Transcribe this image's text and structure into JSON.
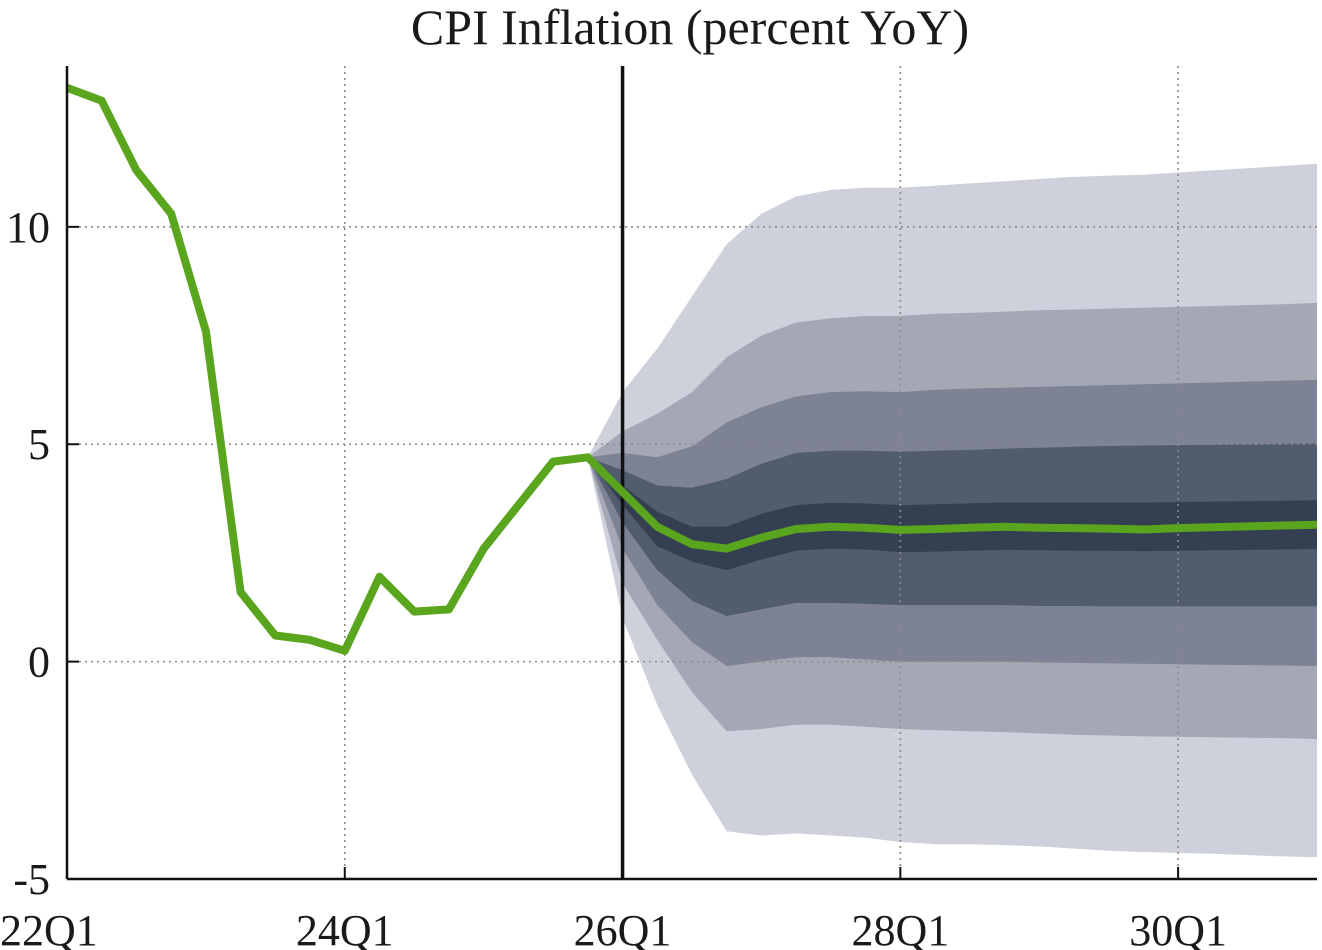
{
  "chart_data": {
    "type": "line",
    "title": "CPI Inflation (percent YoY)",
    "xlabel": "",
    "ylabel": "",
    "grid": true,
    "ylim": [
      -5,
      13.7
    ],
    "xlim": [
      0,
      36
    ],
    "x_ticks": [
      {
        "x": 0,
        "label": "22Q1"
      },
      {
        "x": 8,
        "label": "24Q1"
      },
      {
        "x": 16,
        "label": "26Q1"
      },
      {
        "x": 24,
        "label": "28Q1"
      },
      {
        "x": 32,
        "label": "30Q1"
      }
    ],
    "y_ticks": [
      {
        "y": -5,
        "label": "-5"
      },
      {
        "y": 0,
        "label": "0"
      },
      {
        "y": 5,
        "label": "5"
      },
      {
        "y": 10,
        "label": "10"
      }
    ],
    "forecast_start": 16,
    "series": [
      {
        "name": "CPI inflation",
        "color": "#5aa51e",
        "x": [
          0,
          1,
          2,
          3,
          4,
          5,
          6,
          7,
          8,
          9,
          10,
          11,
          12,
          13,
          14,
          15,
          16,
          17,
          18,
          19,
          20,
          21,
          22,
          23,
          24,
          25,
          26,
          27,
          28,
          29,
          30,
          31,
          32,
          33,
          34,
          35,
          36
        ],
        "values": [
          13.2,
          12.9,
          11.3,
          10.3,
          7.6,
          1.6,
          0.6,
          0.5,
          0.25,
          1.95,
          1.15,
          1.2,
          2.6,
          3.6,
          4.6,
          4.7,
          3.9,
          3.1,
          2.7,
          2.6,
          2.85,
          3.05,
          3.1,
          3.08,
          3.03,
          3.05,
          3.08,
          3.1,
          3.08,
          3.07,
          3.06,
          3.04,
          3.07,
          3.09,
          3.11,
          3.13,
          3.15
        ]
      }
    ],
    "fan_chart": {
      "x": [
        15,
        16,
        17,
        18,
        19,
        20,
        21,
        22,
        23,
        24,
        25,
        26,
        27,
        28,
        29,
        30,
        31,
        32,
        33,
        34,
        35,
        36
      ],
      "bands": [
        {
          "name": "outer band",
          "color": "#ced1dc",
          "lower": [
            4.7,
            1.0,
            -1.0,
            -2.6,
            -3.9,
            -4.0,
            -3.95,
            -4.0,
            -4.05,
            -4.15,
            -4.2,
            -4.2,
            -4.22,
            -4.25,
            -4.3,
            -4.35,
            -4.38,
            -4.4,
            -4.42,
            -4.45,
            -4.48,
            -4.5
          ],
          "upper": [
            4.7,
            6.2,
            7.2,
            8.4,
            9.6,
            10.3,
            10.7,
            10.85,
            10.9,
            10.9,
            10.95,
            11.0,
            11.05,
            11.1,
            11.15,
            11.18,
            11.2,
            11.25,
            11.3,
            11.35,
            11.4,
            11.45
          ]
        },
        {
          "name": "band 2",
          "color": "#a4a8b5",
          "lower": [
            4.7,
            1.8,
            0.5,
            -0.7,
            -1.6,
            -1.55,
            -1.45,
            -1.45,
            -1.5,
            -1.55,
            -1.58,
            -1.6,
            -1.62,
            -1.65,
            -1.68,
            -1.7,
            -1.72,
            -1.73,
            -1.74,
            -1.75,
            -1.76,
            -1.78
          ],
          "upper": [
            4.7,
            5.3,
            5.7,
            6.2,
            7.0,
            7.5,
            7.8,
            7.9,
            7.95,
            7.95,
            8.0,
            8.02,
            8.05,
            8.08,
            8.1,
            8.12,
            8.14,
            8.16,
            8.18,
            8.2,
            8.22,
            8.25
          ]
        },
        {
          "name": "band 3",
          "color": "#7d8394",
          "lower": [
            4.7,
            2.6,
            1.3,
            0.45,
            -0.1,
            0.0,
            0.1,
            0.1,
            0.05,
            0.0,
            0.0,
            0.0,
            0.0,
            -0.02,
            -0.03,
            -0.04,
            -0.05,
            -0.06,
            -0.07,
            -0.08,
            -0.09,
            -0.1
          ],
          "upper": [
            4.7,
            4.8,
            4.7,
            4.95,
            5.5,
            5.85,
            6.1,
            6.2,
            6.22,
            6.2,
            6.25,
            6.28,
            6.3,
            6.32,
            6.34,
            6.36,
            6.38,
            6.4,
            6.42,
            6.44,
            6.46,
            6.48
          ]
        },
        {
          "name": "band 4",
          "color": "#525c6f",
          "lower": [
            4.7,
            3.2,
            2.1,
            1.4,
            1.05,
            1.2,
            1.35,
            1.35,
            1.33,
            1.3,
            1.3,
            1.3,
            1.3,
            1.28,
            1.28,
            1.27,
            1.27,
            1.27,
            1.27,
            1.27,
            1.27,
            1.27
          ],
          "upper": [
            4.7,
            4.4,
            4.05,
            4.0,
            4.2,
            4.55,
            4.8,
            4.85,
            4.85,
            4.83,
            4.85,
            4.87,
            4.9,
            4.92,
            4.94,
            4.96,
            4.97,
            4.98,
            4.99,
            5.0,
            5.01,
            5.02
          ]
        },
        {
          "name": "inner band",
          "color": "#353f52",
          "lower": [
            4.7,
            3.6,
            2.65,
            2.3,
            2.1,
            2.35,
            2.55,
            2.6,
            2.58,
            2.52,
            2.53,
            2.55,
            2.57,
            2.56,
            2.55,
            2.55,
            2.54,
            2.55,
            2.56,
            2.57,
            2.58,
            2.59
          ],
          "upper": [
            4.7,
            4.05,
            3.45,
            3.1,
            3.1,
            3.4,
            3.6,
            3.65,
            3.64,
            3.6,
            3.62,
            3.64,
            3.66,
            3.66,
            3.66,
            3.66,
            3.66,
            3.67,
            3.68,
            3.69,
            3.7,
            3.71
          ]
        }
      ]
    }
  }
}
